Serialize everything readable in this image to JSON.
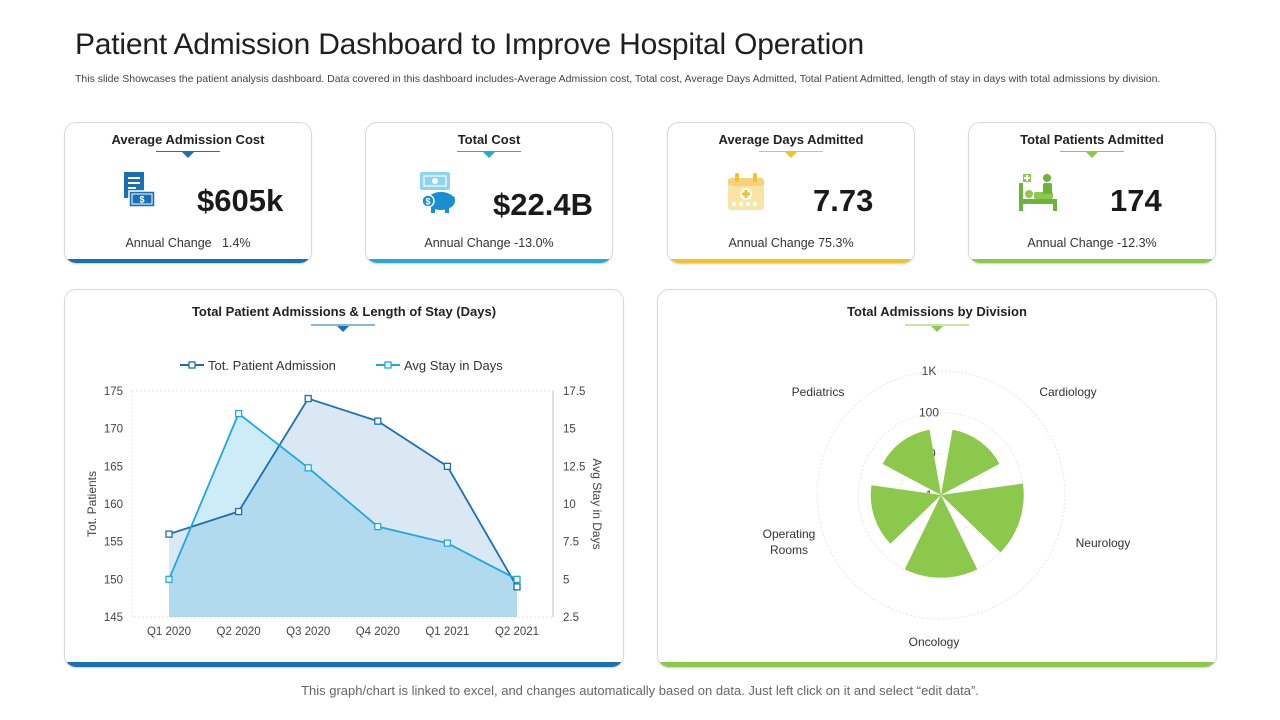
{
  "header": {
    "title": "Patient Admission Dashboard to Improve Hospital Operation",
    "subtitle": "This slide Showcases the patient analysis dashboard. Data covered in this dashboard includes-Average Admission cost, Total cost, Average Days Admitted, Total Patient Admitted, length of stay in days with total admissions by division."
  },
  "kpis": [
    {
      "title": "Average Admission  Cost",
      "value": "$605k",
      "change_label": "Annual Change",
      "change_value": "1.4%",
      "icon": "document-cash-icon",
      "accent": "#1a6fb5"
    },
    {
      "title": "Total Cost",
      "value": "$22.4B",
      "change_label": "Annual Change",
      "change_value": "-13.0%",
      "icon": "piggy-bank-money-icon",
      "accent": "#29a8df"
    },
    {
      "title": "Average Days Admitted",
      "value": "7.73",
      "change_label": "Annual Change",
      "change_value": "75.3%",
      "icon": "calendar-icon",
      "accent": "#f2c12e"
    },
    {
      "title": "Total Patients Admitted",
      "value": "174",
      "change_label": "Annual Change",
      "change_value": "-12.3%",
      "icon": "patient-bed-icon",
      "accent": "#8cc84b"
    }
  ],
  "chart_data": [
    {
      "type": "line",
      "title": "Total Patient Admissions  & Length of Stay (Days)",
      "categories": [
        "Q1 2020",
        "Q2 2020",
        "Q3 2020",
        "Q4 2020",
        "Q1 2021",
        "Q2 2021"
      ],
      "series": [
        {
          "name": "Tot. Patient Admission",
          "axis": "left",
          "values": [
            156,
            159,
            174,
            171,
            165,
            149
          ],
          "color": "#1a6fb5"
        },
        {
          "name": "Avg Stay in Days",
          "axis": "right",
          "values": [
            5,
            16,
            12.4,
            8.5,
            7.4,
            5
          ],
          "color": "#1fa8e0"
        }
      ],
      "ylabel": "Tot.  Patients",
      "ylabel_right": "Avg Stay in Days",
      "ylim": [
        145,
        175
      ],
      "yticks": [
        145,
        150,
        155,
        160,
        165,
        170,
        175
      ],
      "ylim_right": [
        2.5,
        17.5
      ],
      "yticks_right": [
        "2.5",
        "5",
        "7.5",
        "10",
        "12.5",
        "15",
        "17.5"
      ],
      "legend": "top",
      "grid": false
    },
    {
      "type": "polar-area",
      "title": "Total Admissions  by Division",
      "categories": [
        "Cardiology",
        "Neurology",
        "Oncology",
        "Operating Rooms",
        "Pediatrics"
      ],
      "scale": "log",
      "rticks": [
        "1",
        "10",
        "100",
        "1K"
      ],
      "values": [
        40,
        100,
        100,
        50,
        40
      ],
      "color": "#8cc84b"
    }
  ],
  "footer": "This graph/chart is linked to excel,  and changes automatically based on data. Just left click on it and select “edit data”."
}
